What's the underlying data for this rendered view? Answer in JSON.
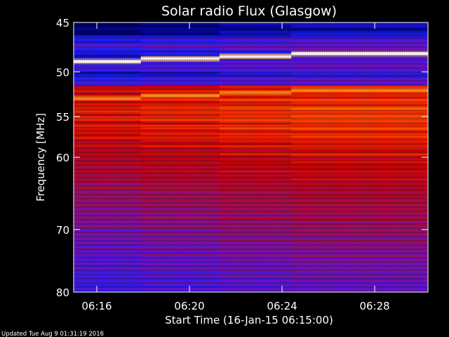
{
  "chart_data": {
    "type": "heatmap",
    "title": "Solar radio Flux (Glasgow)",
    "xlabel": "Start Time (16-Jan-15 06:15:00)",
    "ylabel": "Frequency [MHz]",
    "footer": "Updated Tue Aug  9 01:31:19 2016",
    "x_ticks": [
      {
        "label": "06:16",
        "minutes": 1
      },
      {
        "label": "06:20",
        "minutes": 5
      },
      {
        "label": "06:24",
        "minutes": 9
      },
      {
        "label": "06:28",
        "minutes": 13
      }
    ],
    "x_range_minutes": [
      0,
      15.3
    ],
    "y_ticks": [
      {
        "label": "45",
        "mhz": 45
      },
      {
        "label": "50",
        "mhz": 50
      },
      {
        "label": "55",
        "mhz": 55
      },
      {
        "label": "60",
        "mhz": 60
      },
      {
        "label": "70",
        "mhz": 70
      },
      {
        "label": "80",
        "mhz": 80
      }
    ],
    "ylim": [
      45,
      80
    ],
    "y_scale": "log",
    "grid": false,
    "colormap": [
      "#000010",
      "#00008c",
      "#2020ff",
      "#6a12c8",
      "#a0105a",
      "#c8000a",
      "#ff3000",
      "#ff9000",
      "#ffffff"
    ],
    "features": [
      {
        "name": "bright band",
        "mhz_start": 48.9,
        "mhz_end": 48.1
      },
      {
        "name": "orange band",
        "mhz_start": 52.9,
        "mhz_end": 52.0
      }
    ]
  }
}
